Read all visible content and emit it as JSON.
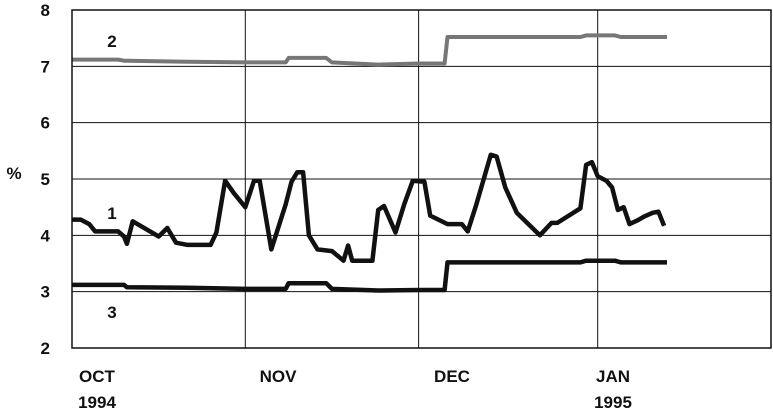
{
  "chart_data": {
    "type": "line",
    "ylabel": "%",
    "ylim": [
      2,
      8
    ],
    "y_ticks": [
      "2",
      "3",
      "4",
      "5",
      "6",
      "7",
      "8"
    ],
    "x_ticks": [
      {
        "label1": "OCT",
        "label2": "1994",
        "value": 0
      },
      {
        "label1": "NOV",
        "label2": "",
        "value": 30
      },
      {
        "label1": "DEC",
        "label2": "",
        "value": 60
      },
      {
        "label1": "JAN",
        "label2": "1995",
        "value": 91
      }
    ],
    "xlim": [
      0,
      121
    ],
    "grid": true,
    "series": [
      {
        "name": "1",
        "stroke_width": 4.5,
        "color": "#111111",
        "points": [
          [
            0,
            4.28
          ],
          [
            1.5,
            4.28
          ],
          [
            3,
            4.2
          ],
          [
            4,
            4.07
          ],
          [
            6,
            4.07
          ],
          [
            8,
            4.07
          ],
          [
            9,
            3.98
          ],
          [
            9.5,
            3.85
          ],
          [
            10.5,
            4.25
          ],
          [
            13,
            4.1
          ],
          [
            15,
            3.98
          ],
          [
            16.5,
            4.13
          ],
          [
            18,
            3.87
          ],
          [
            20,
            3.83
          ],
          [
            22,
            3.83
          ],
          [
            24,
            3.83
          ],
          [
            25,
            4.05
          ],
          [
            26.5,
            4.97
          ],
          [
            28,
            4.75
          ],
          [
            30,
            4.5
          ],
          [
            31.5,
            4.97
          ],
          [
            32.5,
            4.97
          ],
          [
            34.5,
            3.75
          ],
          [
            37,
            4.55
          ],
          [
            38,
            4.95
          ],
          [
            39,
            5.12
          ],
          [
            40,
            5.12
          ],
          [
            41,
            4.0
          ],
          [
            42.5,
            3.75
          ],
          [
            45,
            3.72
          ],
          [
            47,
            3.55
          ],
          [
            47.8,
            3.82
          ],
          [
            48.5,
            3.55
          ],
          [
            50,
            3.55
          ],
          [
            52,
            3.55
          ],
          [
            53,
            4.45
          ],
          [
            54,
            4.52
          ],
          [
            56,
            4.05
          ],
          [
            57.5,
            4.55
          ],
          [
            59,
            4.97
          ],
          [
            61,
            4.95
          ],
          [
            62,
            4.35
          ],
          [
            65,
            4.2
          ],
          [
            67.5,
            4.2
          ],
          [
            68.5,
            4.07
          ],
          [
            70,
            4.55
          ],
          [
            72.5,
            5.43
          ],
          [
            73.5,
            5.4
          ],
          [
            75,
            4.85
          ],
          [
            77,
            4.4
          ],
          [
            79,
            4.2
          ],
          [
            81,
            4.0
          ],
          [
            83,
            4.22
          ],
          [
            84,
            4.22
          ],
          [
            86,
            4.35
          ],
          [
            88,
            4.48
          ],
          [
            89,
            5.25
          ],
          [
            90,
            5.3
          ],
          [
            91,
            5.05
          ],
          [
            92.5,
            4.97
          ],
          [
            93.5,
            4.85
          ],
          [
            94.5,
            4.45
          ],
          [
            95.5,
            4.5
          ],
          [
            96.5,
            4.2
          ],
          [
            98,
            4.27
          ],
          [
            99,
            4.33
          ],
          [
            100.5,
            4.4
          ],
          [
            101.5,
            4.42
          ],
          [
            102.5,
            4.17
          ]
        ]
      },
      {
        "name": "2",
        "stroke_width": 4,
        "color": "#777777",
        "points": [
          [
            0,
            7.12
          ],
          [
            8,
            7.12
          ],
          [
            9,
            7.1
          ],
          [
            20,
            7.08
          ],
          [
            30,
            7.07
          ],
          [
            37,
            7.07
          ],
          [
            37.5,
            7.15
          ],
          [
            44,
            7.15
          ],
          [
            45,
            7.07
          ],
          [
            53,
            7.03
          ],
          [
            60,
            7.05
          ],
          [
            64.5,
            7.05
          ],
          [
            65,
            7.52
          ],
          [
            88,
            7.52
          ],
          [
            89,
            7.55
          ],
          [
            94,
            7.55
          ],
          [
            95,
            7.52
          ],
          [
            103,
            7.52
          ]
        ]
      },
      {
        "name": "3",
        "stroke_width": 4.5,
        "color": "#111111",
        "points": [
          [
            0,
            3.12
          ],
          [
            9,
            3.12
          ],
          [
            9.5,
            3.08
          ],
          [
            20,
            3.07
          ],
          [
            30,
            3.05
          ],
          [
            37,
            3.05
          ],
          [
            37.5,
            3.15
          ],
          [
            44,
            3.15
          ],
          [
            45,
            3.05
          ],
          [
            53,
            3.02
          ],
          [
            60,
            3.03
          ],
          [
            64.5,
            3.03
          ],
          [
            65,
            3.52
          ],
          [
            88,
            3.52
          ],
          [
            89,
            3.55
          ],
          [
            94,
            3.55
          ],
          [
            95,
            3.52
          ],
          [
            103,
            3.52
          ]
        ]
      }
    ]
  }
}
